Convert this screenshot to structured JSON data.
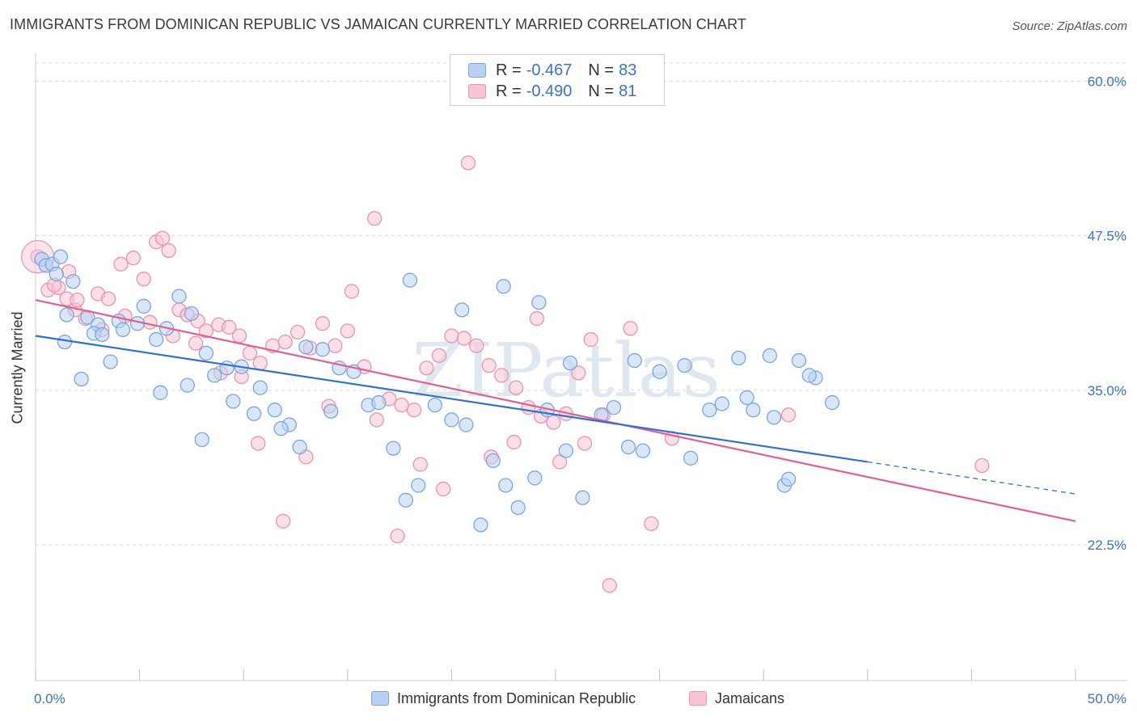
{
  "header": {
    "title": "IMMIGRANTS FROM DOMINICAN REPUBLIC VS JAMAICAN CURRENTLY MARRIED CORRELATION CHART",
    "source": "Source: ZipAtlas.com"
  },
  "legend": {
    "series": [
      {
        "r_label": "R =",
        "r_value": "-0.467",
        "n_label": "N =",
        "n_value": "83"
      },
      {
        "r_label": "R =",
        "r_value": "-0.490",
        "n_label": "N =",
        "n_value": "81"
      }
    ]
  },
  "bottom_legend": {
    "blue": "Immigrants from Dominican Republic",
    "pink": "Jamaicans"
  },
  "watermark": "ZIPatlas",
  "colors": {
    "blue_fill": "#b8d1f3",
    "blue_stroke": "#7aa6e0",
    "blue_line": "#2f6fd1",
    "pink_fill": "#f7c4d3",
    "pink_stroke": "#ec93b0",
    "pink_line": "#e0608f",
    "tick_label": "#3a72c9",
    "grid": "#dcdcdc"
  },
  "chart_data": {
    "type": "scatter",
    "title": "IMMIGRANTS FROM DOMINICAN REPUBLIC VS JAMAICAN CURRENTLY MARRIED CORRELATION CHART",
    "xlabel": "",
    "ylabel": "Currently Married",
    "xlim": [
      0,
      50
    ],
    "ylim": [
      11.5,
      62
    ],
    "x_tick_labels": [
      {
        "value": 0,
        "label": "0.0%"
      },
      {
        "value": 50,
        "label": "50.0%"
      }
    ],
    "y_tick_labels": [
      {
        "value": 60,
        "label": "60.0%"
      },
      {
        "value": 47.5,
        "label": "47.5%"
      },
      {
        "value": 35,
        "label": "35.0%"
      },
      {
        "value": 22.5,
        "label": "22.5%"
      }
    ],
    "grid": true,
    "legend_position": "top-center",
    "series": [
      {
        "name": "Immigrants from Dominican Republic",
        "points": [
          [
            0.3,
            45.6
          ],
          [
            0.5,
            45.1
          ],
          [
            0.8,
            45.2
          ],
          [
            1.2,
            45.8
          ],
          [
            1.0,
            44.4
          ],
          [
            1.8,
            43.8
          ],
          [
            1.5,
            41.1
          ],
          [
            2.5,
            40.9
          ],
          [
            3.0,
            40.3
          ],
          [
            2.8,
            39.6
          ],
          [
            3.2,
            39.5
          ],
          [
            4.0,
            40.6
          ],
          [
            4.2,
            39.9
          ],
          [
            4.9,
            40.4
          ],
          [
            5.2,
            41.8
          ],
          [
            5.8,
            39.1
          ],
          [
            6.3,
            40.0
          ],
          [
            6.9,
            42.6
          ],
          [
            7.5,
            41.2
          ],
          [
            8.2,
            38.0
          ],
          [
            8.6,
            36.2
          ],
          [
            9.2,
            36.8
          ],
          [
            9.9,
            36.9
          ],
          [
            10.8,
            35.2
          ],
          [
            11.5,
            33.4
          ],
          [
            12.2,
            32.2
          ],
          [
            13.0,
            38.5
          ],
          [
            13.8,
            38.3
          ],
          [
            14.6,
            36.8
          ],
          [
            15.3,
            36.5
          ],
          [
            16.0,
            33.8
          ],
          [
            16.5,
            34.0
          ],
          [
            17.2,
            30.3
          ],
          [
            17.8,
            26.1
          ],
          [
            18.4,
            27.3
          ],
          [
            19.2,
            33.8
          ],
          [
            20.0,
            32.6
          ],
          [
            20.7,
            32.2
          ],
          [
            21.4,
            24.1
          ],
          [
            22.0,
            29.3
          ],
          [
            22.6,
            27.3
          ],
          [
            23.2,
            25.5
          ],
          [
            24.0,
            27.9
          ],
          [
            24.6,
            33.4
          ],
          [
            25.5,
            30.1
          ],
          [
            26.3,
            26.3
          ],
          [
            27.2,
            33.0
          ],
          [
            27.8,
            33.6
          ],
          [
            28.5,
            30.4
          ],
          [
            29.2,
            30.1
          ],
          [
            30.0,
            36.5
          ],
          [
            31.2,
            37.0
          ],
          [
            32.4,
            33.4
          ],
          [
            33.0,
            33.9
          ],
          [
            33.8,
            37.6
          ],
          [
            34.5,
            33.4
          ],
          [
            35.3,
            37.8
          ],
          [
            36.0,
            27.3
          ],
          [
            36.7,
            37.4
          ],
          [
            37.5,
            36.0
          ],
          [
            38.3,
            34.0
          ],
          [
            6.0,
            34.8
          ],
          [
            7.3,
            35.4
          ],
          [
            8.0,
            31.0
          ],
          [
            9.5,
            34.1
          ],
          [
            10.5,
            33.1
          ],
          [
            11.8,
            31.9
          ],
          [
            12.7,
            30.4
          ],
          [
            14.2,
            33.3
          ],
          [
            18.0,
            43.9
          ],
          [
            20.5,
            41.5
          ],
          [
            22.5,
            43.4
          ],
          [
            24.2,
            42.1
          ],
          [
            25.7,
            37.2
          ],
          [
            28.8,
            37.4
          ],
          [
            31.5,
            29.5
          ],
          [
            34.2,
            34.4
          ],
          [
            35.5,
            32.8
          ],
          [
            36.2,
            27.8
          ],
          [
            37.2,
            36.2
          ],
          [
            1.4,
            38.9
          ],
          [
            2.2,
            35.9
          ],
          [
            3.6,
            37.3
          ]
        ],
        "trendline": {
          "x": [
            0,
            40
          ],
          "y": [
            39.4,
            29.2
          ],
          "dashed_extension": {
            "x": [
              40,
              50
            ],
            "y": [
              29.2,
              26.6
            ]
          }
        }
      },
      {
        "name": "Jamaicans",
        "points": [
          [
            0.1,
            45.8
          ],
          [
            0.6,
            43.1
          ],
          [
            1.1,
            43.3
          ],
          [
            1.5,
            42.4
          ],
          [
            1.9,
            41.5
          ],
          [
            2.4,
            40.8
          ],
          [
            3.0,
            42.8
          ],
          [
            3.5,
            42.4
          ],
          [
            4.1,
            45.2
          ],
          [
            4.7,
            45.7
          ],
          [
            5.2,
            44.0
          ],
          [
            5.8,
            47.0
          ],
          [
            6.1,
            47.3
          ],
          [
            6.4,
            46.3
          ],
          [
            6.9,
            41.5
          ],
          [
            7.3,
            41.1
          ],
          [
            7.8,
            40.6
          ],
          [
            8.2,
            39.8
          ],
          [
            8.8,
            40.3
          ],
          [
            9.3,
            40.1
          ],
          [
            9.8,
            39.4
          ],
          [
            10.3,
            38.0
          ],
          [
            10.8,
            37.2
          ],
          [
            11.4,
            38.6
          ],
          [
            12.0,
            38.9
          ],
          [
            12.6,
            39.7
          ],
          [
            13.2,
            38.4
          ],
          [
            13.8,
            40.4
          ],
          [
            14.4,
            38.6
          ],
          [
            15.0,
            39.8
          ],
          [
            15.8,
            36.9
          ],
          [
            16.4,
            32.6
          ],
          [
            17.0,
            34.3
          ],
          [
            17.6,
            33.8
          ],
          [
            18.2,
            33.4
          ],
          [
            18.8,
            36.8
          ],
          [
            19.4,
            37.8
          ],
          [
            20.0,
            39.4
          ],
          [
            20.6,
            39.2
          ],
          [
            21.2,
            38.6
          ],
          [
            21.8,
            37.0
          ],
          [
            22.4,
            36.2
          ],
          [
            23.1,
            35.2
          ],
          [
            23.7,
            33.6
          ],
          [
            24.3,
            32.9
          ],
          [
            24.9,
            32.4
          ],
          [
            25.5,
            33.1
          ],
          [
            26.1,
            36.4
          ],
          [
            26.7,
            39.1
          ],
          [
            27.3,
            33.0
          ],
          [
            0.9,
            43.5
          ],
          [
            2.0,
            42.3
          ],
          [
            3.2,
            39.9
          ],
          [
            4.3,
            41.0
          ],
          [
            5.5,
            40.5
          ],
          [
            6.6,
            39.4
          ],
          [
            7.7,
            38.8
          ],
          [
            8.9,
            36.4
          ],
          [
            9.9,
            36.1
          ],
          [
            10.7,
            30.7
          ],
          [
            11.9,
            24.4
          ],
          [
            13.0,
            29.6
          ],
          [
            14.1,
            33.7
          ],
          [
            15.2,
            43.0
          ],
          [
            16.3,
            48.9
          ],
          [
            17.4,
            23.2
          ],
          [
            18.5,
            29.0
          ],
          [
            19.6,
            27.0
          ],
          [
            20.8,
            53.4
          ],
          [
            21.9,
            29.6
          ],
          [
            23.0,
            30.8
          ],
          [
            24.1,
            40.8
          ],
          [
            25.2,
            29.2
          ],
          [
            26.4,
            30.7
          ],
          [
            27.6,
            19.2
          ],
          [
            28.6,
            40.0
          ],
          [
            29.6,
            24.2
          ],
          [
            30.6,
            31.1
          ],
          [
            36.2,
            33.0
          ],
          [
            45.5,
            28.9
          ],
          [
            1.6,
            44.6
          ]
        ],
        "trendline": {
          "x": [
            0,
            50
          ],
          "y": [
            42.3,
            24.4
          ]
        }
      }
    ]
  }
}
